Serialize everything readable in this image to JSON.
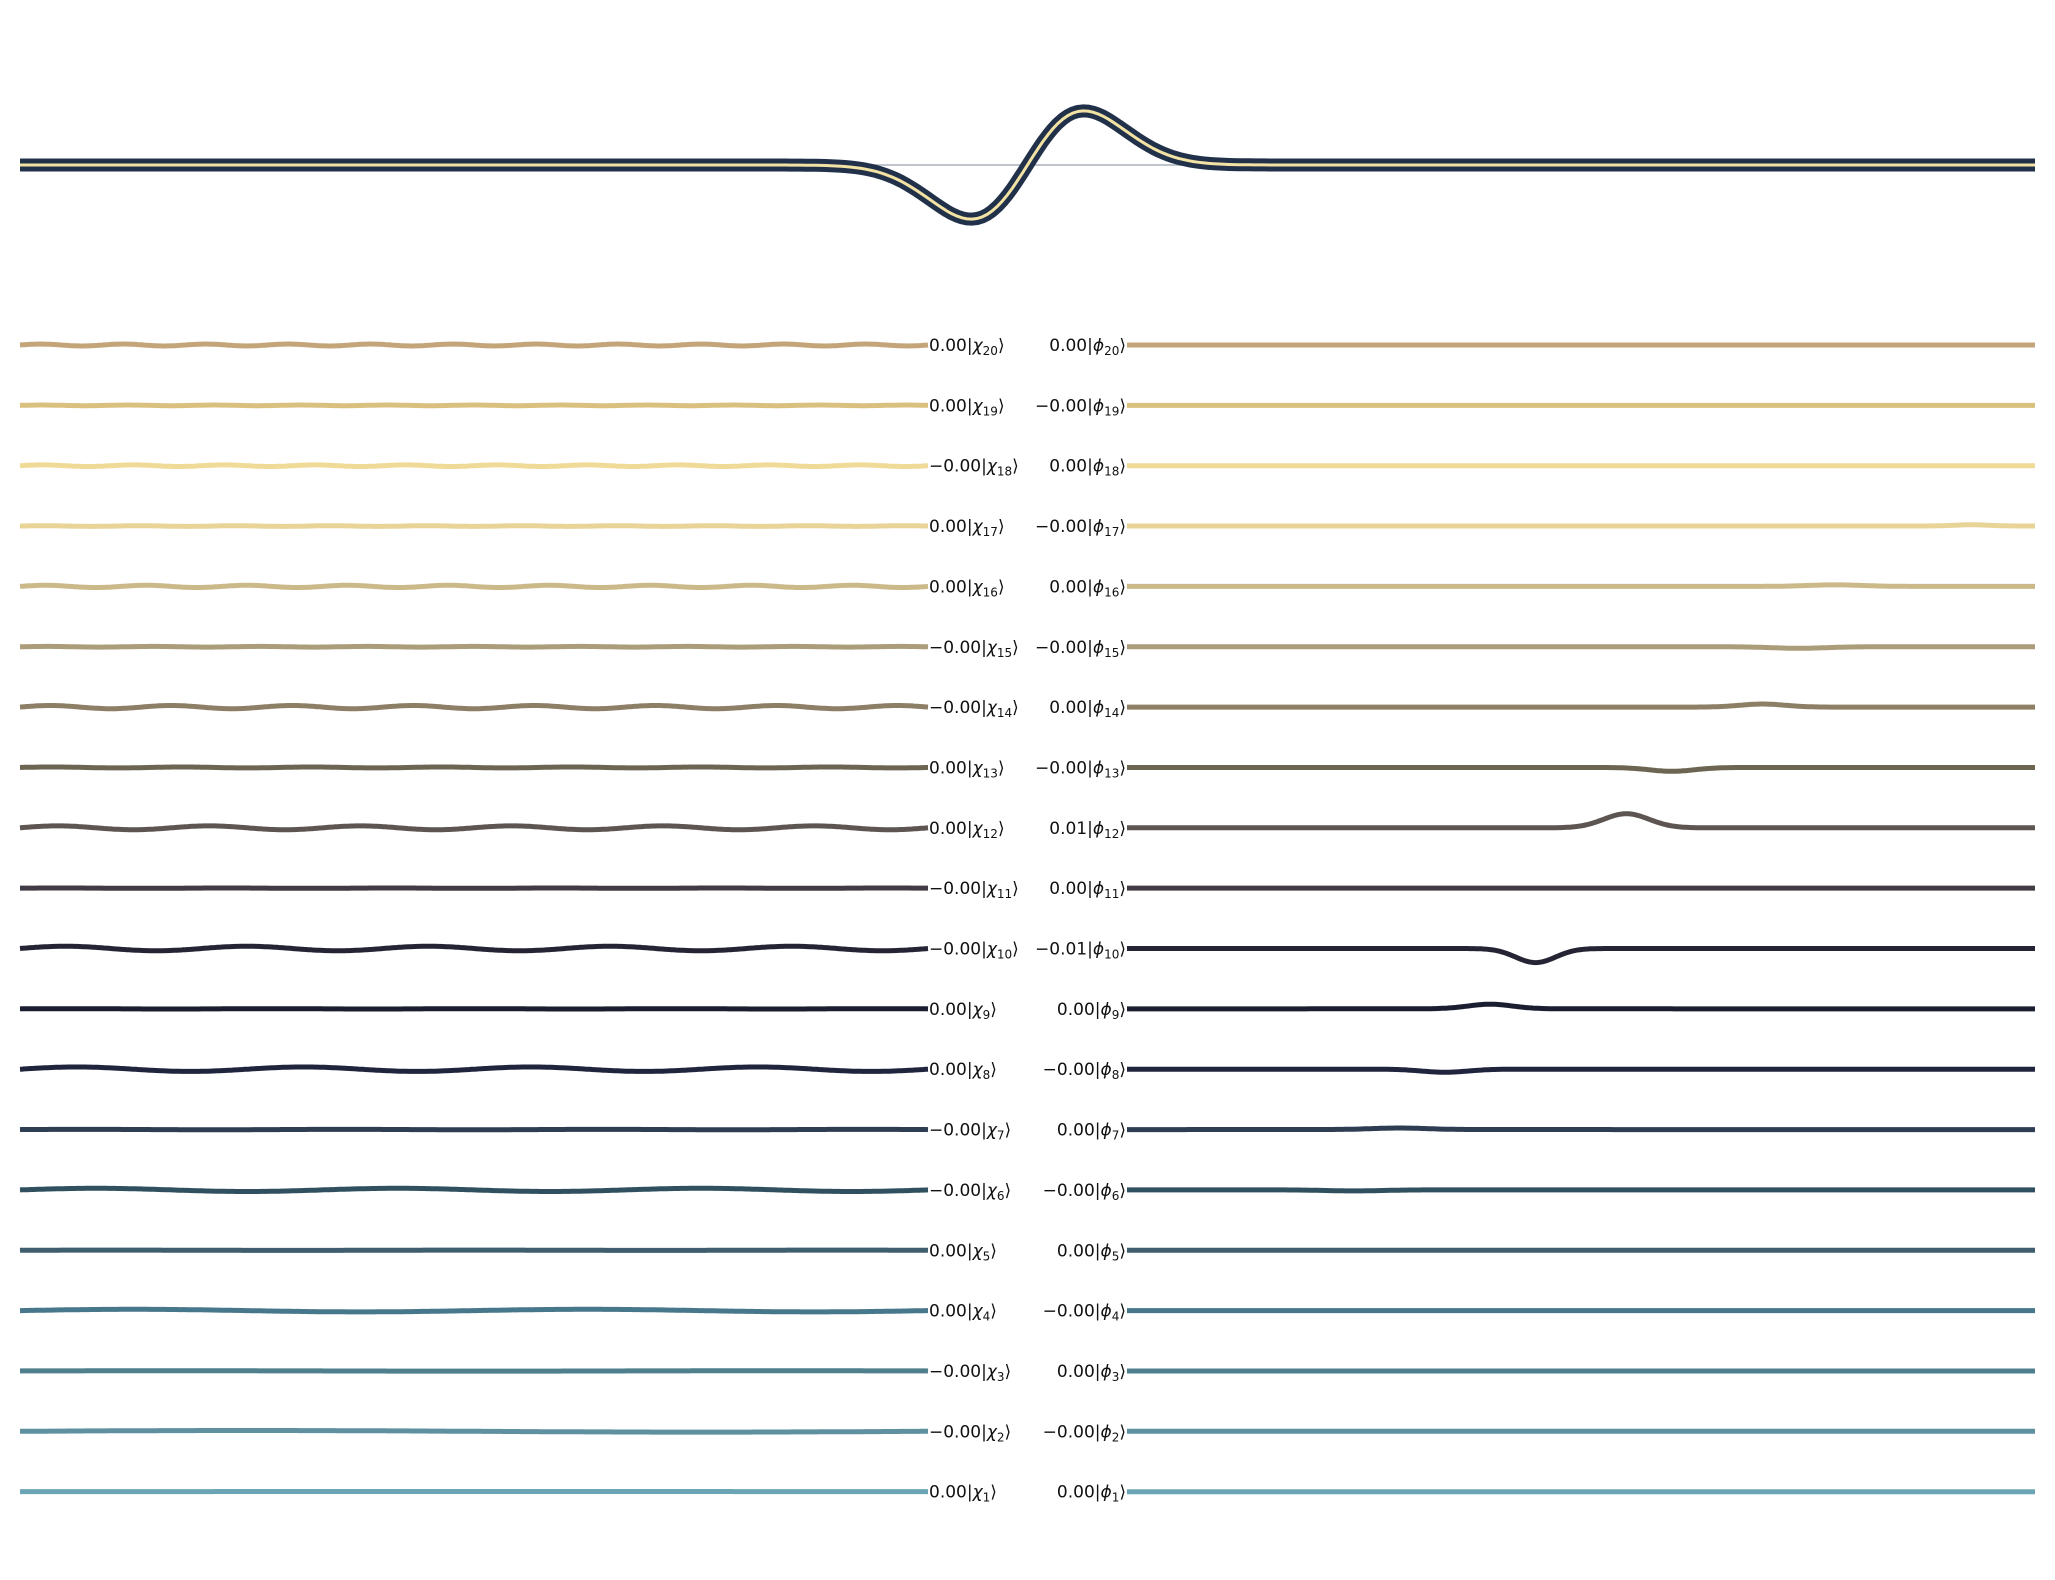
{
  "chart_data": {
    "type": "line",
    "title": "",
    "xlabel": "",
    "ylabel": "",
    "grid": false,
    "legend": "none",
    "axes_visible": false,
    "main_signal": {
      "description_of_shape": "derivative-of-gaussian wavelet",
      "baseline": 0,
      "peak_center": 0.5,
      "peak_width": 0.028,
      "peak_amplitude": 1.0,
      "outline_color": "#22314a",
      "inner_color": "#f2e2a4",
      "baseline_color": "#c0c4cc"
    },
    "basis_rows": [
      {
        "index": 20,
        "chi_coeff": "0.00",
        "phi_coeff": "0.00",
        "color": "#c4a57a",
        "chi_wiggle": 0.06,
        "chi_freq": 22,
        "phi_bump": null
      },
      {
        "index": 19,
        "chi_coeff": "0.00",
        "phi_coeff": "−0.00",
        "color": "#d9c07f",
        "chi_wiggle": 0.02,
        "chi_freq": 21,
        "phi_bump": null
      },
      {
        "index": 18,
        "chi_coeff": "−0.00",
        "phi_coeff": "0.00",
        "color": "#f0da97",
        "chi_wiggle": 0.05,
        "chi_freq": 20,
        "phi_bump": null
      },
      {
        "index": 17,
        "chi_coeff": "0.00",
        "phi_coeff": "−0.00",
        "color": "#e8d497",
        "chi_wiggle": 0.02,
        "chi_freq": 19,
        "phi_bump": {
          "center": 0.93,
          "width": 0.02,
          "amp": 0.05
        }
      },
      {
        "index": 16,
        "chi_coeff": "0.00",
        "phi_coeff": "0.00",
        "color": "#cbb98a",
        "chi_wiggle": 0.07,
        "chi_freq": 18,
        "phi_bump": {
          "center": 0.78,
          "width": 0.03,
          "amp": 0.06
        }
      },
      {
        "index": 15,
        "chi_coeff": "−0.00",
        "phi_coeff": "−0.00",
        "color": "#ab9c7a",
        "chi_wiggle": 0.02,
        "chi_freq": 17,
        "phi_bump": {
          "center": 0.74,
          "width": 0.03,
          "amp": -0.06
        }
      },
      {
        "index": 14,
        "chi_coeff": "−0.00",
        "phi_coeff": "0.00",
        "color": "#8d7f66",
        "chi_wiggle": 0.1,
        "chi_freq": 15,
        "phi_bump": {
          "center": 0.7,
          "width": 0.025,
          "amp": 0.12
        }
      },
      {
        "index": 13,
        "chi_coeff": "0.00",
        "phi_coeff": "−0.00",
        "color": "#6b6552",
        "chi_wiggle": 0.03,
        "chi_freq": 14,
        "phi_bump": {
          "center": 0.6,
          "width": 0.025,
          "amp": -0.15
        }
      },
      {
        "index": 12,
        "chi_coeff": "0.00",
        "phi_coeff": "0.01",
        "color": "#5d5551",
        "chi_wiggle": 0.12,
        "chi_freq": 12,
        "phi_bump": {
          "center": 0.55,
          "width": 0.025,
          "amp": 0.55
        }
      },
      {
        "index": 11,
        "chi_coeff": "−0.00",
        "phi_coeff": "0.00",
        "color": "#403b44",
        "chi_wiggle": 0.01,
        "chi_freq": 11,
        "phi_bump": null
      },
      {
        "index": 10,
        "chi_coeff": "−0.00",
        "phi_coeff": "−0.01",
        "color": "#252434",
        "chi_wiggle": 0.14,
        "chi_freq": 10,
        "phi_bump": {
          "center": 0.45,
          "width": 0.022,
          "amp": -0.55
        }
      },
      {
        "index": 9,
        "chi_coeff": "0.00",
        "phi_coeff": "0.00",
        "color": "#1a1e30",
        "chi_wiggle": 0.01,
        "chi_freq": 9,
        "phi_bump": {
          "center": 0.4,
          "width": 0.025,
          "amp": 0.18
        }
      },
      {
        "index": 8,
        "chi_coeff": "0.00",
        "phi_coeff": "−0.00",
        "color": "#20253d",
        "chi_wiggle": 0.14,
        "chi_freq": 8,
        "phi_bump": {
          "center": 0.35,
          "width": 0.025,
          "amp": -0.12
        }
      },
      {
        "index": 7,
        "chi_coeff": "−0.00",
        "phi_coeff": "0.00",
        "color": "#2e3d52",
        "chi_wiggle": 0.01,
        "chi_freq": 7,
        "phi_bump": {
          "center": 0.3,
          "width": 0.03,
          "amp": 0.06
        }
      },
      {
        "index": 6,
        "chi_coeff": "−0.00",
        "phi_coeff": "−0.00",
        "color": "#30505f",
        "chi_wiggle": 0.1,
        "chi_freq": 6,
        "phi_bump": {
          "center": 0.25,
          "width": 0.03,
          "amp": -0.04
        }
      },
      {
        "index": 5,
        "chi_coeff": "0.00",
        "phi_coeff": "0.00",
        "color": "#3e5e6f",
        "chi_wiggle": 0.01,
        "chi_freq": 5,
        "phi_bump": null
      },
      {
        "index": 4,
        "chi_coeff": "0.00",
        "phi_coeff": "−0.00",
        "color": "#47778a",
        "chi_wiggle": 0.08,
        "chi_freq": 4,
        "phi_bump": null
      },
      {
        "index": 3,
        "chi_coeff": "−0.00",
        "phi_coeff": "0.00",
        "color": "#4f7e8c",
        "chi_wiggle": 0.01,
        "chi_freq": 3,
        "phi_bump": null
      },
      {
        "index": 2,
        "chi_coeff": "−0.00",
        "phi_coeff": "−0.00",
        "color": "#5e909f",
        "chi_wiggle": 0.05,
        "chi_freq": 2,
        "phi_bump": null
      },
      {
        "index": 1,
        "chi_coeff": "0.00",
        "phi_coeff": "0.00",
        "color": "#6aa4b5",
        "chi_wiggle": 0.01,
        "chi_freq": 1,
        "phi_bump": null
      }
    ],
    "chi_symbol": "χ",
    "phi_symbol": "ϕ",
    "ket_open": "|",
    "ket_close": "⟩"
  }
}
